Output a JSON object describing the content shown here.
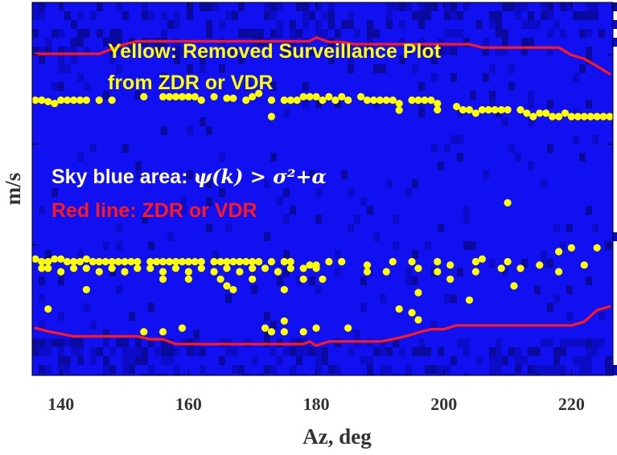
{
  "chart_data": {
    "type": "scatter",
    "title": "",
    "xlabel": "Az, deg",
    "ylabel": "m/s",
    "xlim": [
      135.5,
      226.5
    ],
    "ylim": [
      0,
      1
    ],
    "xticks": [
      140,
      160,
      180,
      200,
      220
    ],
    "x_tick_labels": [
      "140",
      "160",
      "180",
      "200",
      "220"
    ],
    "y_tick_values": [
      0.35,
      0.62,
      0.86
    ],
    "y_tick_labels_shown": false,
    "grid": false,
    "background_color": "#1010f0",
    "annotations": {
      "yellow_line1": "Yellow: Removed Surveillance Plot",
      "yellow_line2": "from ZDR or VDR",
      "sky_prefix": "Sky blue area: ",
      "sky_math": "ψ(k) > σ²+α",
      "red_line": "Red line: ZDR or VDR"
    },
    "series": [
      {
        "name": "ZDR or VDR",
        "kind": "line",
        "color": "#ff1a1a",
        "segments": [
          {
            "x": [
              136,
              142,
              146,
              150,
              152,
              154,
              156,
              158,
              160,
              162,
              164,
              166,
              168,
              170,
              172,
              174,
              176,
              178,
              179,
              180,
              182,
              184,
              186,
              188,
              190,
              192,
              194,
              196,
              198,
              200,
              202,
              204,
              206,
              208,
              210,
              212,
              214,
              216,
              218,
              220,
              222,
              224,
              226
            ],
            "y": [
              0.862,
              0.862,
              0.862,
              0.888,
              0.896,
              0.896,
              0.896,
              0.896,
              0.896,
              0.896,
              0.896,
              0.896,
              0.896,
              0.896,
              0.896,
              0.896,
              0.896,
              0.896,
              0.896,
              0.906,
              0.894,
              0.894,
              0.888,
              0.888,
              0.888,
              0.888,
              0.888,
              0.888,
              0.888,
              0.888,
              0.888,
              0.888,
              0.879,
              0.879,
              0.879,
              0.879,
              0.879,
              0.879,
              0.879,
              0.859,
              0.849,
              0.829,
              0.808
            ]
          },
          {
            "x": [
              136,
              138,
              142,
              146,
              150,
              152,
              154,
              156,
              158,
              160,
              162,
              164,
              166,
              168,
              170,
              172,
              174,
              176,
              178,
              179,
              180,
              182,
              184,
              186,
              188,
              190,
              192,
              194,
              196,
              198,
              200,
              202,
              204,
              206,
              208,
              210,
              212,
              214,
              216,
              218,
              220,
              222,
              224,
              226
            ],
            "y": [
              0.127,
              0.118,
              0.105,
              0.105,
              0.105,
              0.105,
              0.097,
              0.097,
              0.084,
              0.084,
              0.084,
              0.084,
              0.084,
              0.084,
              0.084,
              0.084,
              0.084,
              0.084,
              0.084,
              0.091,
              0.08,
              0.091,
              0.091,
              0.091,
              0.091,
              0.091,
              0.097,
              0.105,
              0.115,
              0.124,
              0.124,
              0.134,
              0.134,
              0.134,
              0.134,
              0.134,
              0.134,
              0.134,
              0.134,
              0.134,
              0.134,
              0.144,
              0.175,
              0.185
            ]
          }
        ]
      },
      {
        "name": "Removed Surveillance Plot",
        "kind": "points",
        "color": "#ffff00",
        "points": [
          [
            136,
            0.738
          ],
          [
            137,
            0.738
          ],
          [
            138,
            0.734
          ],
          [
            139,
            0.729
          ],
          [
            140,
            0.738
          ],
          [
            141,
            0.738
          ],
          [
            142,
            0.738
          ],
          [
            143,
            0.738
          ],
          [
            144,
            0.738
          ],
          [
            146,
            0.738
          ],
          [
            148,
            0.738
          ],
          [
            153,
            0.747
          ],
          [
            156,
            0.747
          ],
          [
            157,
            0.747
          ],
          [
            158,
            0.747
          ],
          [
            159,
            0.747
          ],
          [
            160,
            0.747
          ],
          [
            161,
            0.747
          ],
          [
            162,
            0.738
          ],
          [
            164,
            0.747
          ],
          [
            166,
            0.743
          ],
          [
            167,
            0.743
          ],
          [
            169,
            0.738
          ],
          [
            170,
            0.747
          ],
          [
            171,
            0.756
          ],
          [
            173,
            0.738
          ],
          [
            173,
            0.694
          ],
          [
            175,
            0.738
          ],
          [
            176,
            0.738
          ],
          [
            177,
            0.738
          ],
          [
            178,
            0.747
          ],
          [
            179,
            0.747
          ],
          [
            180,
            0.747
          ],
          [
            181,
            0.738
          ],
          [
            182,
            0.747
          ],
          [
            183,
            0.738
          ],
          [
            184,
            0.747
          ],
          [
            185,
            0.738
          ],
          [
            187,
            0.747
          ],
          [
            188,
            0.738
          ],
          [
            189,
            0.738
          ],
          [
            190,
            0.738
          ],
          [
            191,
            0.738
          ],
          [
            192,
            0.738
          ],
          [
            193,
            0.729
          ],
          [
            193,
            0.711
          ],
          [
            195,
            0.738
          ],
          [
            196,
            0.738
          ],
          [
            197,
            0.738
          ],
          [
            198,
            0.738
          ],
          [
            199,
            0.729
          ],
          [
            199,
            0.712
          ],
          [
            202,
            0.721
          ],
          [
            203,
            0.712
          ],
          [
            204,
            0.712
          ],
          [
            205,
            0.703
          ],
          [
            206,
            0.712
          ],
          [
            207,
            0.712
          ],
          [
            208,
            0.712
          ],
          [
            209,
            0.712
          ],
          [
            210,
            0.712
          ],
          [
            212,
            0.712
          ],
          [
            213,
            0.703
          ],
          [
            214,
            0.694
          ],
          [
            215,
            0.703
          ],
          [
            216,
            0.703
          ],
          [
            217,
            0.694
          ],
          [
            218,
            0.694
          ],
          [
            219,
            0.703
          ],
          [
            220,
            0.694
          ],
          [
            221,
            0.694
          ],
          [
            222,
            0.694
          ],
          [
            223,
            0.694
          ],
          [
            224,
            0.694
          ],
          [
            225,
            0.694
          ],
          [
            226,
            0.694
          ],
          [
            210,
            0.463
          ],
          [
            136,
            0.312
          ],
          [
            137,
            0.305
          ],
          [
            138,
            0.305
          ],
          [
            139,
            0.312
          ],
          [
            140,
            0.312
          ],
          [
            141,
            0.305
          ],
          [
            142,
            0.305
          ],
          [
            143,
            0.305
          ],
          [
            144,
            0.312
          ],
          [
            145,
            0.305
          ],
          [
            146,
            0.305
          ],
          [
            147,
            0.305
          ],
          [
            148,
            0.305
          ],
          [
            149,
            0.305
          ],
          [
            150,
            0.305
          ],
          [
            151,
            0.305
          ],
          [
            152,
            0.305
          ],
          [
            154,
            0.305
          ],
          [
            155,
            0.305
          ],
          [
            156,
            0.305
          ],
          [
            157,
            0.305
          ],
          [
            158,
            0.305
          ],
          [
            159,
            0.305
          ],
          [
            160,
            0.305
          ],
          [
            161,
            0.305
          ],
          [
            162,
            0.305
          ],
          [
            164,
            0.305
          ],
          [
            165,
            0.305
          ],
          [
            166,
            0.305
          ],
          [
            167,
            0.305
          ],
          [
            168,
            0.305
          ],
          [
            169,
            0.305
          ],
          [
            170,
            0.305
          ],
          [
            171,
            0.305
          ],
          [
            173,
            0.305
          ],
          [
            175,
            0.305
          ],
          [
            176,
            0.305
          ],
          [
            179,
            0.296
          ],
          [
            180,
            0.296
          ],
          [
            182,
            0.305
          ],
          [
            184,
            0.305
          ],
          [
            188,
            0.296
          ],
          [
            192,
            0.305
          ],
          [
            195,
            0.305
          ],
          [
            199,
            0.305
          ],
          [
            201,
            0.296
          ],
          [
            205,
            0.305
          ],
          [
            206,
            0.312
          ],
          [
            210,
            0.305
          ],
          [
            215,
            0.296
          ],
          [
            218,
            0.332
          ],
          [
            220,
            0.342
          ],
          [
            222,
            0.296
          ],
          [
            224,
            0.342
          ],
          [
            137,
            0.287
          ],
          [
            138,
            0.287
          ],
          [
            140,
            0.278
          ],
          [
            142,
            0.287
          ],
          [
            144,
            0.287
          ],
          [
            146,
            0.278
          ],
          [
            148,
            0.287
          ],
          [
            150,
            0.278
          ],
          [
            152,
            0.287
          ],
          [
            154,
            0.287
          ],
          [
            156,
            0.278
          ],
          [
            158,
            0.287
          ],
          [
            160,
            0.278
          ],
          [
            162,
            0.287
          ],
          [
            164,
            0.278
          ],
          [
            166,
            0.287
          ],
          [
            168,
            0.278
          ],
          [
            170,
            0.287
          ],
          [
            172,
            0.287
          ],
          [
            174,
            0.278
          ],
          [
            176,
            0.287
          ],
          [
            178,
            0.287
          ],
          [
            180,
            0.287
          ],
          [
            188,
            0.278
          ],
          [
            191,
            0.278
          ],
          [
            196,
            0.287
          ],
          [
            199,
            0.278
          ],
          [
            205,
            0.278
          ],
          [
            209,
            0.287
          ],
          [
            212,
            0.287
          ],
          [
            218,
            0.278
          ],
          [
            144,
            0.23
          ],
          [
            156,
            0.258
          ],
          [
            160,
            0.258
          ],
          [
            165,
            0.258
          ],
          [
            166,
            0.24
          ],
          [
            167,
            0.23
          ],
          [
            170,
            0.258
          ],
          [
            175,
            0.23
          ],
          [
            178,
            0.258
          ],
          [
            181,
            0.258
          ],
          [
            196,
            0.222
          ],
          [
            201,
            0.258
          ],
          [
            211,
            0.24
          ],
          [
            138,
            0.178
          ],
          [
            193,
            0.178
          ],
          [
            195,
            0.168
          ],
          [
            204,
            0.202
          ],
          [
            196,
            0.149
          ],
          [
            153,
            0.117
          ],
          [
            156,
            0.117
          ],
          [
            159,
            0.127
          ],
          [
            173,
            0.117
          ],
          [
            178,
            0.117
          ],
          [
            180,
            0.127
          ],
          [
            185,
            0.127
          ],
          [
            175,
            0.146
          ],
          [
            175,
            0.117
          ],
          [
            172,
            0.127
          ]
        ]
      }
    ],
    "colors": {
      "background": "#1010f0",
      "dark_cells": "#0a0a9e",
      "line": "#ff1a1a",
      "points": "#ffff00",
      "annotation_white": "#ffffff"
    }
  }
}
